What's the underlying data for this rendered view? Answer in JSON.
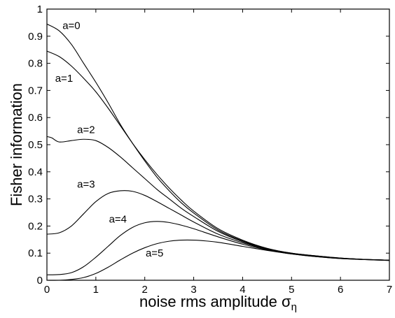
{
  "chart_data": {
    "type": "line",
    "xlabel_main": "noise rms amplitude σ",
    "xlabel_sub": "η",
    "ylabel": "Fisher information",
    "xlim": [
      0,
      7
    ],
    "ylim": [
      0,
      1
    ],
    "xticks": [
      "0",
      "1",
      "2",
      "3",
      "4",
      "5",
      "6",
      "7"
    ],
    "yticks": [
      "0",
      "0.1",
      "0.2",
      "0.3",
      "0.4",
      "0.5",
      "0.6",
      "0.7",
      "0.8",
      "0.9",
      "1"
    ],
    "grid": false,
    "series": [
      {
        "name": "a=0",
        "label_at": [
          0.5,
          0.94
        ],
        "x": [
          0,
          0.25,
          0.5,
          0.75,
          1.0,
          1.25,
          1.5,
          1.75,
          2.0,
          2.25,
          2.5,
          2.75,
          3.0,
          3.5,
          4.0,
          4.5,
          5.0,
          5.5,
          6.0,
          6.5,
          7.0
        ],
        "y": [
          0.945,
          0.92,
          0.87,
          0.8,
          0.73,
          0.655,
          0.575,
          0.505,
          0.44,
          0.38,
          0.33,
          0.285,
          0.248,
          0.185,
          0.145,
          0.117,
          0.1,
          0.09,
          0.082,
          0.077,
          0.074
        ]
      },
      {
        "name": "a=1",
        "label_at": [
          0.35,
          0.745
        ],
        "x": [
          0,
          0.25,
          0.5,
          0.75,
          1.0,
          1.25,
          1.5,
          1.75,
          2.0,
          2.25,
          2.5,
          2.75,
          3.0,
          3.5,
          4.0,
          4.5,
          5.0,
          5.5,
          6.0,
          6.5,
          7.0
        ],
        "y": [
          0.845,
          0.825,
          0.79,
          0.745,
          0.695,
          0.635,
          0.57,
          0.505,
          0.445,
          0.39,
          0.34,
          0.295,
          0.255,
          0.19,
          0.148,
          0.118,
          0.1,
          0.09,
          0.082,
          0.077,
          0.074
        ]
      },
      {
        "name": "a=2",
        "label_at": [
          0.8,
          0.555
        ],
        "x": [
          0,
          0.1,
          0.25,
          0.5,
          0.75,
          1.0,
          1.25,
          1.5,
          1.75,
          2.0,
          2.25,
          2.5,
          2.75,
          3.0,
          3.5,
          4.0,
          4.5,
          5.0,
          5.5,
          6.0,
          6.5,
          7.0
        ],
        "y": [
          0.53,
          0.525,
          0.51,
          0.515,
          0.52,
          0.515,
          0.49,
          0.455,
          0.415,
          0.375,
          0.335,
          0.3,
          0.265,
          0.235,
          0.18,
          0.142,
          0.115,
          0.098,
          0.088,
          0.081,
          0.077,
          0.074
        ]
      },
      {
        "name": "a=3",
        "label_at": [
          0.8,
          0.355
        ],
        "x": [
          0,
          0.25,
          0.5,
          0.75,
          1.0,
          1.25,
          1.5,
          1.75,
          2.0,
          2.25,
          2.5,
          2.75,
          3.0,
          3.5,
          4.0,
          4.5,
          5.0,
          5.5,
          6.0,
          6.5,
          7.0
        ],
        "y": [
          0.17,
          0.175,
          0.2,
          0.245,
          0.29,
          0.32,
          0.33,
          0.328,
          0.313,
          0.29,
          0.265,
          0.24,
          0.215,
          0.17,
          0.138,
          0.114,
          0.098,
          0.088,
          0.081,
          0.077,
          0.074
        ]
      },
      {
        "name": "a=4",
        "label_at": [
          1.45,
          0.225
        ],
        "x": [
          0,
          0.25,
          0.5,
          0.75,
          1.0,
          1.25,
          1.5,
          1.75,
          2.0,
          2.25,
          2.5,
          2.75,
          3.0,
          3.5,
          4.0,
          4.5,
          5.0,
          5.5,
          6.0,
          6.5,
          7.0
        ],
        "y": [
          0.02,
          0.021,
          0.028,
          0.05,
          0.085,
          0.125,
          0.165,
          0.195,
          0.212,
          0.217,
          0.213,
          0.203,
          0.19,
          0.16,
          0.133,
          0.112,
          0.097,
          0.087,
          0.08,
          0.076,
          0.073
        ]
      },
      {
        "name": "a=5",
        "label_at": [
          2.2,
          0.1
        ],
        "x": [
          0,
          0.25,
          0.5,
          0.75,
          1.0,
          1.25,
          1.5,
          1.75,
          2.0,
          2.25,
          2.5,
          2.75,
          3.0,
          3.25,
          3.5,
          4.0,
          4.5,
          5.0,
          5.5,
          6.0,
          6.5,
          7.0
        ],
        "y": [
          0.0,
          0.0,
          0.003,
          0.01,
          0.025,
          0.048,
          0.075,
          0.1,
          0.12,
          0.135,
          0.144,
          0.148,
          0.148,
          0.145,
          0.14,
          0.125,
          0.11,
          0.097,
          0.087,
          0.08,
          0.076,
          0.073
        ]
      }
    ]
  }
}
